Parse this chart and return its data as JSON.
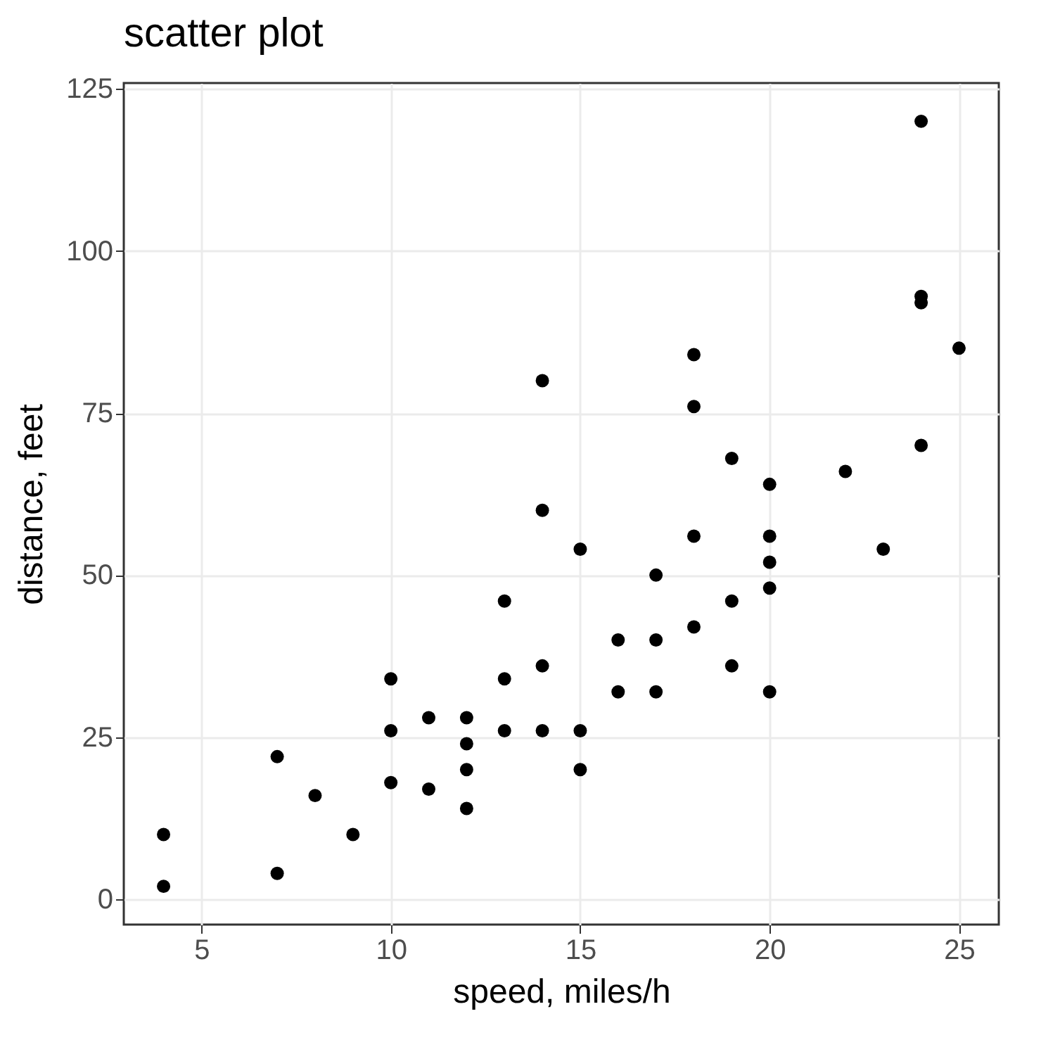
{
  "chart_data": {
    "type": "scatter",
    "title": "scatter plot",
    "xlabel": "speed, miles/h",
    "ylabel": "distance, feet",
    "xlim": [
      2.95,
      26.05
    ],
    "ylim": [
      -3.9,
      125.9
    ],
    "xticks": [
      5,
      10,
      15,
      20,
      25
    ],
    "yticks": [
      0,
      25,
      50,
      75,
      100,
      125
    ],
    "grid": true,
    "marker": "circle",
    "series": [
      {
        "color": "#000000",
        "x": [
          4,
          4,
          7,
          7,
          8,
          9,
          10,
          10,
          10,
          11,
          11,
          12,
          12,
          12,
          12,
          13,
          13,
          13,
          14,
          14,
          14,
          14,
          15,
          15,
          15,
          16,
          16,
          17,
          17,
          17,
          18,
          18,
          18,
          18,
          19,
          19,
          19,
          20,
          20,
          20,
          20,
          20,
          22,
          23,
          24,
          24,
          24,
          24,
          25
        ],
        "values": [
          2,
          10,
          4,
          22,
          16,
          10,
          18,
          26,
          34,
          17,
          28,
          14,
          20,
          24,
          28,
          26,
          34,
          46,
          26,
          36,
          60,
          80,
          20,
          26,
          54,
          32,
          40,
          32,
          40,
          50,
          42,
          56,
          76,
          84,
          36,
          46,
          68,
          32,
          48,
          52,
          56,
          64,
          66,
          54,
          70,
          92,
          93,
          120,
          85
        ]
      }
    ]
  }
}
